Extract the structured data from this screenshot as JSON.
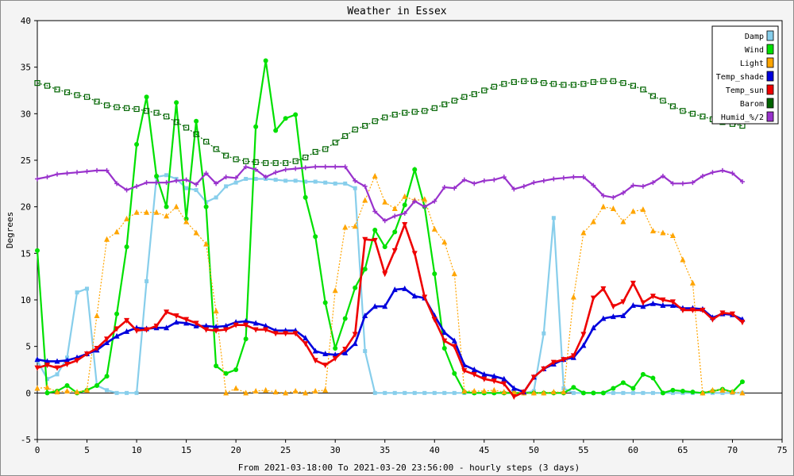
{
  "chart_data": {
    "type": "line",
    "title": "Weather in Essex",
    "xlabel": "From 2021-03-18:00 To 2021-03-20 23:56:00 - hourly steps (3 days)",
    "ylabel": "Degrees",
    "xlim": [
      0,
      75
    ],
    "ylim": [
      -5,
      40
    ],
    "x_ticks": [
      0,
      5,
      10,
      15,
      20,
      25,
      30,
      35,
      40,
      45,
      50,
      55,
      60,
      65,
      70,
      75
    ],
    "y_ticks": [
      -5,
      0,
      5,
      10,
      15,
      20,
      25,
      30,
      35,
      40
    ],
    "grid": true,
    "legend_position": "top-right",
    "x": [
      0,
      1,
      2,
      3,
      4,
      5,
      6,
      7,
      8,
      9,
      10,
      11,
      12,
      13,
      14,
      15,
      16,
      17,
      18,
      19,
      20,
      21,
      22,
      23,
      24,
      25,
      26,
      27,
      28,
      29,
      30,
      31,
      32,
      33,
      34,
      35,
      36,
      37,
      38,
      39,
      40,
      41,
      42,
      43,
      44,
      45,
      46,
      47,
      48,
      49,
      50,
      51,
      52,
      53,
      54,
      55,
      56,
      57,
      58,
      59,
      60,
      61,
      62,
      63,
      64,
      65,
      66,
      67,
      68,
      69,
      70,
      71
    ],
    "series": [
      {
        "name": "Damp",
        "color": "#87ceeb",
        "marker": "square",
        "style": "solid",
        "values": [
          3.5,
          1.5,
          2.0,
          3.8,
          10.8,
          11.2,
          0.8,
          0.3,
          0,
          0,
          0,
          12.0,
          23.2,
          23.4,
          23.0,
          22.0,
          21.8,
          20.5,
          21.0,
          22.2,
          22.6,
          23.0,
          23.0,
          23.0,
          22.9,
          22.8,
          22.8,
          22.7,
          22.7,
          22.6,
          22.5,
          22.5,
          22.0,
          4.5,
          0,
          0,
          0,
          0,
          0,
          0,
          0,
          0,
          0,
          0,
          0,
          0,
          0,
          0,
          0,
          0,
          0.2,
          6.4,
          18.8,
          0.5,
          0,
          0,
          0,
          0,
          0,
          0,
          0,
          0,
          0,
          0,
          0,
          0,
          0,
          0,
          0,
          0,
          0,
          0
        ]
      },
      {
        "name": "Wind",
        "color": "#00e000",
        "marker": "circle",
        "style": "solid",
        "values": [
          15.3,
          0,
          0.2,
          0.8,
          0,
          0.3,
          0.8,
          1.8,
          8.5,
          15.7,
          26.7,
          31.8,
          23.3,
          20.0,
          31.2,
          18.7,
          29.2,
          20.0,
          2.9,
          2.1,
          2.5,
          5.8,
          28.6,
          35.7,
          28.2,
          29.5,
          29.9,
          21.0,
          16.8,
          9.7,
          4.8,
          8.0,
          11.3,
          13.3,
          17.5,
          15.7,
          17.3,
          20.2,
          24.0,
          20.0,
          12.8,
          4.8,
          2.1,
          0.1,
          0,
          0,
          0,
          0,
          0,
          0,
          0,
          0,
          0,
          0,
          0.6,
          0,
          0,
          0,
          0.5,
          1.1,
          0.5,
          2.0,
          1.6,
          0,
          0.3,
          0.2,
          0.1,
          0,
          0.2,
          0.4,
          0.1,
          1.2
        ]
      },
      {
        "name": "Light",
        "color": "#ffa500",
        "marker": "triangle-up",
        "style": "dotted",
        "values": [
          0.5,
          0.6,
          0.1,
          0.2,
          0.1,
          0.3,
          8.3,
          16.5,
          17.3,
          18.7,
          19.4,
          19.4,
          19.4,
          19.0,
          20.0,
          18.4,
          17.2,
          16.0,
          8.8,
          0,
          0.5,
          0,
          0.2,
          0.3,
          0.1,
          0,
          0.2,
          0,
          0.2,
          0.3,
          11.0,
          17.8,
          17.9,
          20.7,
          23.3,
          20.5,
          19.8,
          21.1,
          20.7,
          20.8,
          17.6,
          16.2,
          12.8,
          0.2,
          0.2,
          0.2,
          0.3,
          0.1,
          0.1,
          0,
          0,
          0,
          0.1,
          0.1,
          10.3,
          17.2,
          18.4,
          20.0,
          19.8,
          18.4,
          19.5,
          19.7,
          17.4,
          17.2,
          16.9,
          14.3,
          11.8,
          0,
          0.3,
          0.3,
          0.1,
          0
        ]
      },
      {
        "name": "Temp_shade",
        "color": "#0000dd",
        "marker": "triangle-up",
        "style": "solid-thick",
        "values": [
          3.6,
          3.4,
          3.4,
          3.5,
          3.8,
          4.2,
          4.6,
          5.4,
          6.1,
          6.6,
          7.0,
          6.9,
          7.0,
          7.0,
          7.6,
          7.5,
          7.2,
          7.2,
          7.1,
          7.2,
          7.6,
          7.7,
          7.5,
          7.2,
          6.7,
          6.7,
          6.7,
          5.9,
          4.5,
          4.2,
          4.1,
          4.3,
          5.3,
          8.3,
          9.3,
          9.3,
          11.1,
          11.2,
          10.4,
          10.2,
          8.3,
          6.5,
          5.6,
          3.0,
          2.5,
          2.0,
          1.8,
          1.5,
          0.5,
          0.1,
          1.7,
          2.6,
          3.1,
          3.6,
          3.8,
          5.1,
          7.0,
          8.0,
          8.2,
          8.3,
          9.4,
          9.3,
          9.6,
          9.4,
          9.4,
          9.1,
          9.1,
          9.0,
          8.1,
          8.5,
          8.4,
          7.9
        ]
      },
      {
        "name": "Temp_sun",
        "color": "#ee0000",
        "marker": "triangle-down",
        "style": "solid-thick",
        "values": [
          2.7,
          3.0,
          2.7,
          3.1,
          3.5,
          4.2,
          4.8,
          5.8,
          6.9,
          7.8,
          6.7,
          6.8,
          7.2,
          8.7,
          8.3,
          7.9,
          7.5,
          6.8,
          6.7,
          6.8,
          7.3,
          7.3,
          6.8,
          6.8,
          6.4,
          6.4,
          6.4,
          5.3,
          3.5,
          3.0,
          3.7,
          4.7,
          6.3,
          16.5,
          16.4,
          12.8,
          15.3,
          18.1,
          15.0,
          10.3,
          7.9,
          5.6,
          5.0,
          2.4,
          2.0,
          1.5,
          1.3,
          1.0,
          -0.4,
          0.1,
          1.7,
          2.6,
          3.3,
          3.6,
          4.0,
          6.3,
          10.2,
          11.2,
          9.3,
          9.8,
          11.8,
          9.7,
          10.4,
          10.0,
          9.8,
          8.9,
          8.9,
          8.9,
          7.9,
          8.6,
          8.5,
          7.6
        ]
      },
      {
        "name": "Barom",
        "color": "#006400",
        "marker": "square-dot",
        "style": "dotted",
        "values": [
          33.3,
          33.0,
          32.6,
          32.3,
          32.0,
          31.8,
          31.3,
          30.9,
          30.7,
          30.6,
          30.5,
          30.3,
          30.1,
          29.7,
          29.1,
          28.5,
          27.8,
          27.0,
          26.2,
          25.5,
          25.1,
          24.9,
          24.8,
          24.7,
          24.7,
          24.7,
          24.9,
          25.3,
          25.9,
          26.2,
          26.9,
          27.6,
          28.3,
          28.7,
          29.2,
          29.6,
          29.9,
          30.1,
          30.2,
          30.3,
          30.6,
          31.0,
          31.4,
          31.8,
          32.1,
          32.5,
          32.9,
          33.2,
          33.4,
          33.5,
          33.5,
          33.3,
          33.2,
          33.1,
          33.1,
          33.2,
          33.4,
          33.5,
          33.5,
          33.3,
          33.0,
          32.6,
          31.9,
          31.4,
          30.8,
          30.3,
          30.0,
          29.7,
          29.4,
          29.1,
          28.9,
          28.7
        ]
      },
      {
        "name": "Humid_%/2",
        "color": "#9932cc",
        "marker": "plus",
        "style": "solid",
        "values": [
          23.0,
          23.2,
          23.5,
          23.6,
          23.7,
          23.8,
          23.9,
          23.9,
          22.5,
          21.8,
          22.2,
          22.6,
          22.6,
          22.6,
          22.8,
          22.9,
          22.4,
          23.6,
          22.5,
          23.2,
          23.1,
          24.3,
          24.0,
          23.2,
          23.7,
          24.0,
          24.1,
          24.2,
          24.3,
          24.3,
          24.3,
          24.3,
          22.8,
          22.2,
          19.5,
          18.5,
          19.0,
          19.3,
          20.6,
          20.0,
          20.6,
          22.1,
          22.0,
          22.9,
          22.5,
          22.8,
          22.9,
          23.2,
          21.9,
          22.2,
          22.6,
          22.8,
          23.0,
          23.1,
          23.2,
          23.2,
          22.3,
          21.2,
          21.0,
          21.5,
          22.3,
          22.2,
          22.6,
          23.3,
          22.5,
          22.5,
          22.6,
          23.3,
          23.7,
          23.9,
          23.6,
          22.7
        ]
      }
    ]
  }
}
